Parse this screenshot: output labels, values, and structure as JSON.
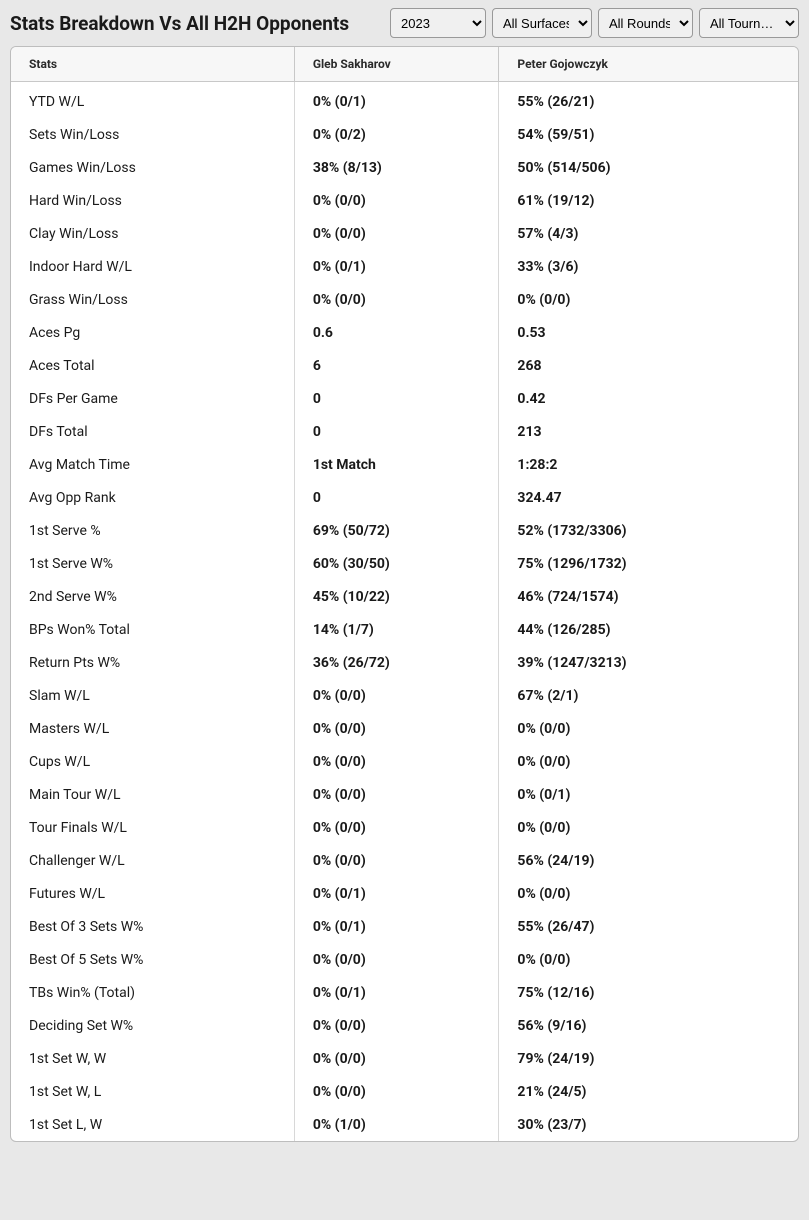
{
  "title": "Stats Breakdown Vs All H2H Opponents",
  "filters": {
    "year": "2023",
    "surface": "All Surfaces",
    "round": "All Rounds",
    "tourn": "All Tourn…"
  },
  "columns": {
    "stats": "Stats",
    "p1": "Gleb Sakharov",
    "p2": "Peter Gojowczyk"
  },
  "rows": [
    {
      "stat": "YTD W/L",
      "p1": "0% (0/1)",
      "p2": "55% (26/21)"
    },
    {
      "stat": "Sets Win/Loss",
      "p1": "0% (0/2)",
      "p2": "54% (59/51)"
    },
    {
      "stat": "Games Win/Loss",
      "p1": "38% (8/13)",
      "p2": "50% (514/506)"
    },
    {
      "stat": "Hard Win/Loss",
      "p1": "0% (0/0)",
      "p2": "61% (19/12)"
    },
    {
      "stat": "Clay Win/Loss",
      "p1": "0% (0/0)",
      "p2": "57% (4/3)"
    },
    {
      "stat": "Indoor Hard W/L",
      "p1": "0% (0/1)",
      "p2": "33% (3/6)"
    },
    {
      "stat": "Grass Win/Loss",
      "p1": "0% (0/0)",
      "p2": "0% (0/0)"
    },
    {
      "stat": "Aces Pg",
      "p1": "0.6",
      "p2": "0.53"
    },
    {
      "stat": "Aces Total",
      "p1": "6",
      "p2": "268"
    },
    {
      "stat": "DFs Per Game",
      "p1": "0",
      "p2": "0.42"
    },
    {
      "stat": "DFs Total",
      "p1": "0",
      "p2": "213"
    },
    {
      "stat": "Avg Match Time",
      "p1": "1st Match",
      "p2": "1:28:2"
    },
    {
      "stat": "Avg Opp Rank",
      "p1": "0",
      "p2": "324.47"
    },
    {
      "stat": "1st Serve %",
      "p1": "69% (50/72)",
      "p2": "52% (1732/3306)"
    },
    {
      "stat": "1st Serve W%",
      "p1": "60% (30/50)",
      "p2": "75% (1296/1732)"
    },
    {
      "stat": "2nd Serve W%",
      "p1": "45% (10/22)",
      "p2": "46% (724/1574)"
    },
    {
      "stat": "BPs Won% Total",
      "p1": "14% (1/7)",
      "p2": "44% (126/285)"
    },
    {
      "stat": "Return Pts W%",
      "p1": "36% (26/72)",
      "p2": "39% (1247/3213)"
    },
    {
      "stat": "Slam W/L",
      "p1": "0% (0/0)",
      "p2": "67% (2/1)"
    },
    {
      "stat": "Masters W/L",
      "p1": "0% (0/0)",
      "p2": "0% (0/0)"
    },
    {
      "stat": "Cups W/L",
      "p1": "0% (0/0)",
      "p2": "0% (0/0)"
    },
    {
      "stat": "Main Tour W/L",
      "p1": "0% (0/0)",
      "p2": "0% (0/1)"
    },
    {
      "stat": "Tour Finals W/L",
      "p1": "0% (0/0)",
      "p2": "0% (0/0)"
    },
    {
      "stat": "Challenger W/L",
      "p1": "0% (0/0)",
      "p2": "56% (24/19)"
    },
    {
      "stat": "Futures W/L",
      "p1": "0% (0/1)",
      "p2": "0% (0/0)"
    },
    {
      "stat": "Best Of 3 Sets W%",
      "p1": "0% (0/1)",
      "p2": "55% (26/47)"
    },
    {
      "stat": "Best Of 5 Sets W%",
      "p1": "0% (0/0)",
      "p2": "0% (0/0)"
    },
    {
      "stat": "TBs Win% (Total)",
      "p1": "0% (0/1)",
      "p2": "75% (12/16)"
    },
    {
      "stat": "Deciding Set W%",
      "p1": "0% (0/0)",
      "p2": "56% (9/16)"
    },
    {
      "stat": "1st Set W, W",
      "p1": "0% (0/0)",
      "p2": "79% (24/19)"
    },
    {
      "stat": "1st Set W, L",
      "p1": "0% (0/0)",
      "p2": "21% (24/5)"
    },
    {
      "stat": "1st Set L, W",
      "p1": "0% (1/0)",
      "p2": "30% (23/7)"
    }
  ]
}
